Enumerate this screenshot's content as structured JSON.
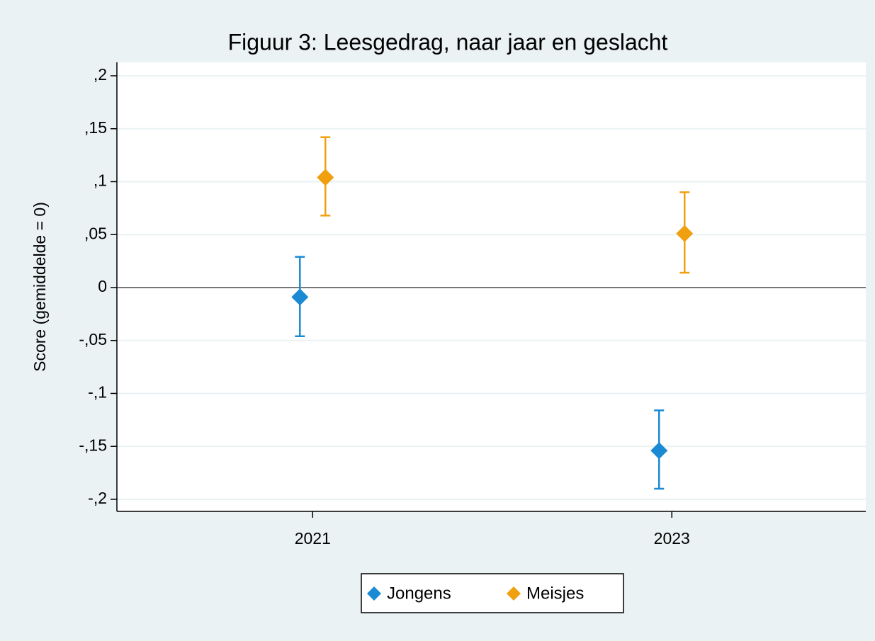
{
  "chart_data": {
    "type": "errorbar",
    "title": "Figuur 3: Leesgedrag, naar jaar en geslacht",
    "y_label": "Score (gemiddelde = 0)",
    "x": [
      2021,
      2023
    ],
    "xlim": [
      2019.91,
      2024.08
    ],
    "xticks": [
      2021,
      2023
    ],
    "ylim": [
      -0.2114,
      0.2127
    ],
    "yticks": [
      {
        "value": -0.2,
        "label": "-,2"
      },
      {
        "value": -0.15,
        "label": "-,15"
      },
      {
        "value": -0.1,
        "label": "-,1"
      },
      {
        "value": -0.05,
        "label": "-,05"
      },
      0,
      {
        "value": 0.05,
        "label": ",05"
      },
      {
        "value": 0.1,
        "label": ",1"
      },
      {
        "value": 0.15,
        "label": ",15"
      },
      {
        "value": 0.2,
        "label": ",2"
      }
    ],
    "grid": true,
    "legend": "bottom",
    "series": [
      {
        "name": "Jongens",
        "color": "#1a8ad4",
        "values": [
          -0.009,
          -0.154
        ],
        "upper": [
          0.029,
          -0.116
        ],
        "lower": [
          -0.046,
          -0.19
        ]
      },
      {
        "name": "Meisjes",
        "color": "#f0a00f",
        "values": [
          0.104,
          0.051
        ],
        "upper": [
          0.142,
          0.09
        ],
        "lower": [
          0.068,
          0.014
        ]
      }
    ]
  }
}
